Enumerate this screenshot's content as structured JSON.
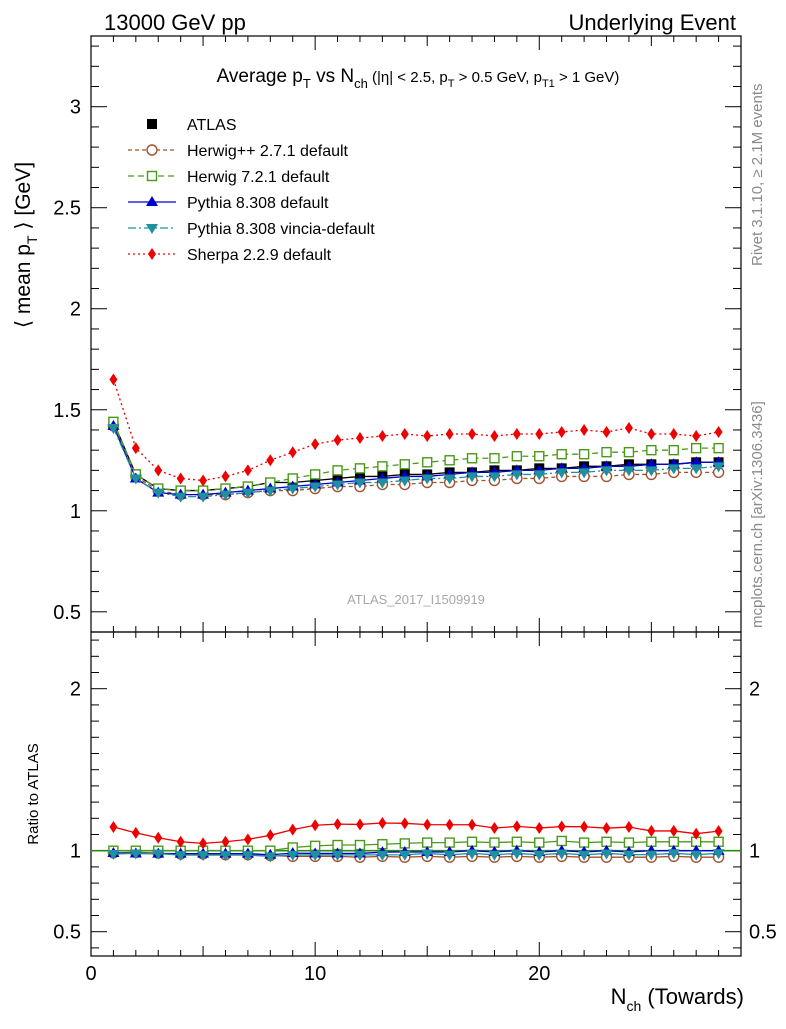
{
  "header": {
    "left": "13000 GeV pp",
    "right": "Underlying Event"
  },
  "title": {
    "main": "Average p",
    "main_sub": "T",
    "vs": " vs N",
    "vs_sub": "ch",
    "cuts_open": " (|η| < 2.5, p",
    "cuts_sub1": "T",
    "cuts_mid": " > 0.5 GeV, p",
    "cuts_sub2": "T1",
    "cuts_close": " > 1 GeV)"
  },
  "side_labels": {
    "rivet": "Rivet 3.1.10, ≥ 2.1M events",
    "mcplots": "mcplots.cern.ch [arXiv:1306.3436]"
  },
  "watermark": "ATLAS_2017_I1509919",
  "ylabel_main": {
    "pre": "⟨ mean p",
    "sub": "T",
    "post": " ⟩ [GeV]"
  },
  "ylabel_ratio": "Ratio to ATLAS",
  "xlabel": {
    "pre": "N",
    "sub": "ch",
    "post": " (Towards)"
  },
  "colors": {
    "atlas": "#000000",
    "herwigpp": "#a0522d",
    "herwig7": "#4a9a1a",
    "pythia": "#0000cc",
    "vincia": "#1e90a0",
    "sherpa": "#ee0000",
    "ratio_line": "#2a8a10"
  },
  "chart_data": [
    {
      "type": "line",
      "panel": "main",
      "xlim": [
        0,
        29
      ],
      "ylim": [
        0.4,
        3.35
      ],
      "x_ticks": [
        0,
        10,
        20
      ],
      "y_ticks": [
        0.5,
        1,
        1.5,
        2,
        2.5,
        3
      ],
      "legend_position": "top-left",
      "x": [
        1,
        2,
        3,
        4,
        5,
        6,
        7,
        8,
        9,
        10,
        11,
        12,
        13,
        14,
        15,
        16,
        17,
        18,
        19,
        20,
        21,
        22,
        23,
        24,
        25,
        26,
        27,
        28
      ],
      "series": [
        {
          "name": "ATLAS",
          "key": "atlas",
          "marker": "square-filled",
          "values": [
            1.44,
            1.18,
            1.11,
            1.1,
            1.1,
            1.11,
            1.12,
            1.14,
            1.14,
            1.15,
            1.16,
            1.17,
            1.17,
            1.18,
            1.18,
            1.19,
            1.19,
            1.2,
            1.2,
            1.21,
            1.21,
            1.22,
            1.22,
            1.23,
            1.23,
            1.23,
            1.24,
            1.24
          ]
        },
        {
          "name": "Herwig++ 2.7.1 default",
          "key": "herwigpp",
          "marker": "circle-open",
          "dash": "4,3",
          "values": [
            1.42,
            1.17,
            1.1,
            1.08,
            1.08,
            1.08,
            1.09,
            1.1,
            1.1,
            1.11,
            1.12,
            1.12,
            1.13,
            1.13,
            1.14,
            1.14,
            1.15,
            1.15,
            1.16,
            1.16,
            1.17,
            1.17,
            1.17,
            1.18,
            1.18,
            1.19,
            1.19,
            1.19
          ]
        },
        {
          "name": "Herwig 7.2.1 default",
          "key": "herwig7",
          "marker": "square-open",
          "dash": "6,4",
          "values": [
            1.44,
            1.18,
            1.11,
            1.1,
            1.1,
            1.11,
            1.12,
            1.14,
            1.16,
            1.18,
            1.2,
            1.21,
            1.22,
            1.23,
            1.24,
            1.25,
            1.26,
            1.26,
            1.27,
            1.27,
            1.28,
            1.28,
            1.29,
            1.29,
            1.3,
            1.3,
            1.31,
            1.31
          ]
        },
        {
          "name": "Pythia 8.308 default",
          "key": "pythia",
          "marker": "triangle-up",
          "dash": "",
          "values": [
            1.42,
            1.16,
            1.09,
            1.08,
            1.08,
            1.09,
            1.1,
            1.11,
            1.12,
            1.13,
            1.14,
            1.15,
            1.16,
            1.17,
            1.17,
            1.18,
            1.19,
            1.19,
            1.2,
            1.2,
            1.21,
            1.21,
            1.22,
            1.22,
            1.23,
            1.23,
            1.24,
            1.24
          ]
        },
        {
          "name": "Pythia 8.308 vincia-default",
          "key": "vincia",
          "marker": "triangle-down",
          "dash": "8,3,2,3",
          "values": [
            1.41,
            1.16,
            1.09,
            1.07,
            1.07,
            1.08,
            1.09,
            1.1,
            1.11,
            1.12,
            1.13,
            1.14,
            1.14,
            1.15,
            1.16,
            1.16,
            1.17,
            1.17,
            1.18,
            1.18,
            1.19,
            1.19,
            1.2,
            1.2,
            1.2,
            1.21,
            1.21,
            1.22
          ]
        },
        {
          "name": "Sherpa 2.2.9 default",
          "key": "sherpa",
          "marker": "diamond",
          "dash": "2,3",
          "values": [
            1.65,
            1.31,
            1.2,
            1.16,
            1.15,
            1.17,
            1.2,
            1.25,
            1.29,
            1.33,
            1.35,
            1.36,
            1.37,
            1.38,
            1.37,
            1.38,
            1.38,
            1.37,
            1.38,
            1.38,
            1.39,
            1.4,
            1.39,
            1.41,
            1.38,
            1.38,
            1.37,
            1.39
          ]
        }
      ]
    },
    {
      "type": "line",
      "panel": "ratio",
      "xlim": [
        0,
        29
      ],
      "ylim": [
        0.35,
        2.35
      ],
      "x_ticks": [
        0,
        10,
        20
      ],
      "x_ticklabels": [
        "0",
        "10",
        "20"
      ],
      "y_ticks": [
        0.5,
        1,
        2
      ],
      "y_ticklabels": [
        "0.5",
        "1",
        "2"
      ],
      "reference": 1,
      "x": [
        1,
        2,
        3,
        4,
        5,
        6,
        7,
        8,
        9,
        10,
        11,
        12,
        13,
        14,
        15,
        16,
        17,
        18,
        19,
        20,
        21,
        22,
        23,
        24,
        25,
        26,
        27,
        28
      ],
      "series": [
        {
          "name": "Herwig++ 2.7.1 default",
          "key": "herwigpp",
          "marker": "circle-open",
          "values": [
            0.986,
            0.99,
            0.985,
            0.98,
            0.98,
            0.975,
            0.975,
            0.97,
            0.965,
            0.965,
            0.965,
            0.96,
            0.965,
            0.96,
            0.965,
            0.96,
            0.965,
            0.96,
            0.965,
            0.96,
            0.965,
            0.96,
            0.96,
            0.96,
            0.96,
            0.965,
            0.96,
            0.96
          ]
        },
        {
          "name": "Herwig 7.2.1 default",
          "key": "herwig7",
          "marker": "square-open",
          "values": [
            1.0,
            1.0,
            1.0,
            1.0,
            1.0,
            1.0,
            1.0,
            1.0,
            1.02,
            1.03,
            1.035,
            1.035,
            1.04,
            1.045,
            1.05,
            1.05,
            1.055,
            1.05,
            1.055,
            1.05,
            1.06,
            1.05,
            1.055,
            1.05,
            1.055,
            1.055,
            1.055,
            1.055
          ]
        },
        {
          "name": "Pythia 8.308 default",
          "key": "pythia",
          "marker": "triangle-up",
          "values": [
            0.986,
            0.983,
            0.982,
            0.982,
            0.982,
            0.982,
            0.982,
            0.975,
            0.985,
            0.983,
            0.983,
            0.983,
            0.991,
            0.992,
            0.992,
            0.992,
            1.0,
            0.992,
            1.0,
            0.992,
            1.0,
            0.992,
            1.0,
            0.992,
            1.0,
            1.0,
            1.0,
            1.0
          ]
        },
        {
          "name": "Pythia 8.308 vincia-default",
          "key": "vincia",
          "marker": "triangle-down",
          "values": [
            0.98,
            0.983,
            0.982,
            0.973,
            0.973,
            0.973,
            0.973,
            0.965,
            0.974,
            0.974,
            0.974,
            0.974,
            0.974,
            0.975,
            0.983,
            0.975,
            0.983,
            0.975,
            0.983,
            0.975,
            0.983,
            0.975,
            0.983,
            0.976,
            0.976,
            0.984,
            0.976,
            0.984
          ]
        },
        {
          "name": "Sherpa 2.2.9 default",
          "key": "sherpa",
          "marker": "diamond",
          "values": [
            1.146,
            1.11,
            1.08,
            1.055,
            1.045,
            1.055,
            1.07,
            1.095,
            1.13,
            1.157,
            1.164,
            1.162,
            1.171,
            1.169,
            1.161,
            1.16,
            1.16,
            1.14,
            1.15,
            1.14,
            1.149,
            1.148,
            1.139,
            1.146,
            1.122,
            1.122,
            1.105,
            1.121
          ]
        }
      ]
    }
  ]
}
